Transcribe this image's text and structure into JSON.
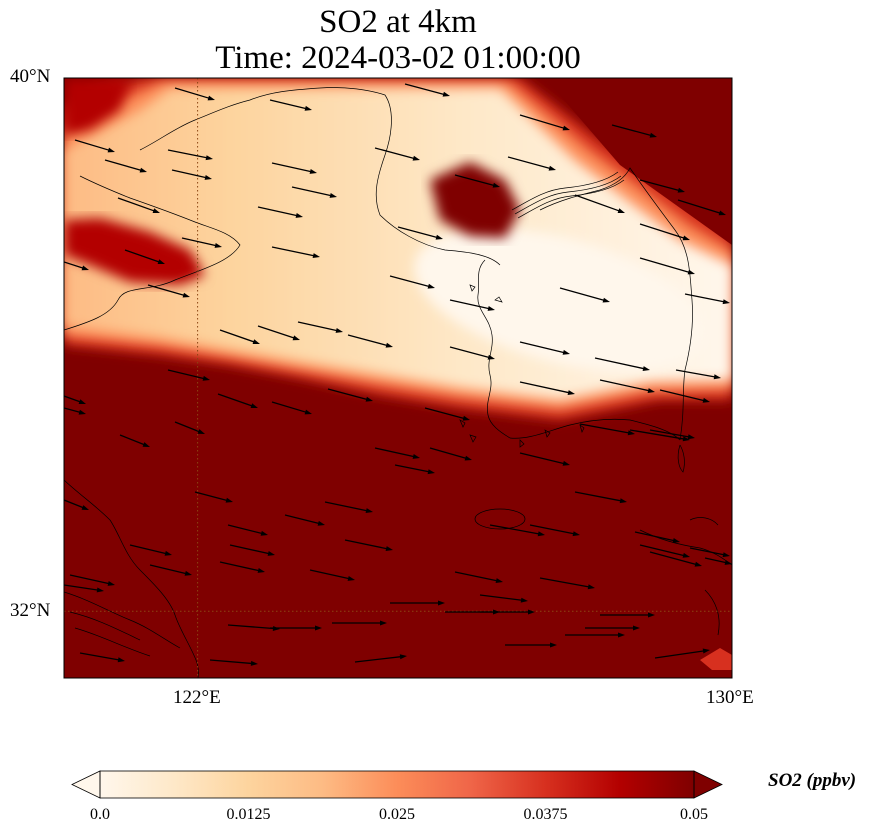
{
  "map": {
    "title_line1": "SO2 at 4km",
    "title_line2": "Time: 2024-03-02 01:00:00",
    "lat_labels": [
      "40°N",
      "32°N"
    ],
    "lon_labels": [
      "122°E",
      "130°E"
    ],
    "lon_range": [
      120,
      130
    ],
    "lat_range": [
      31,
      40
    ],
    "gridlines": {
      "lon": [
        122
      ],
      "lat": [
        32
      ],
      "style": "dotted"
    },
    "variable": "SO2",
    "units": "ppbv",
    "colormap": "OrRd",
    "vector_field": "wind arrows, predominantly eastward / east-southeastward"
  },
  "colorbar": {
    "label": "SO2 (ppbv)",
    "ticks": [
      "0.0",
      "0.0125",
      "0.025",
      "0.0375",
      "0.05"
    ],
    "range": [
      0.0,
      0.05
    ],
    "extend": "both",
    "colors": [
      "#fff7ec",
      "#fee8c8",
      "#fdd49e",
      "#fdbb84",
      "#fc8d59",
      "#ef6548",
      "#d7301f",
      "#b30000",
      "#7f0000"
    ]
  }
}
